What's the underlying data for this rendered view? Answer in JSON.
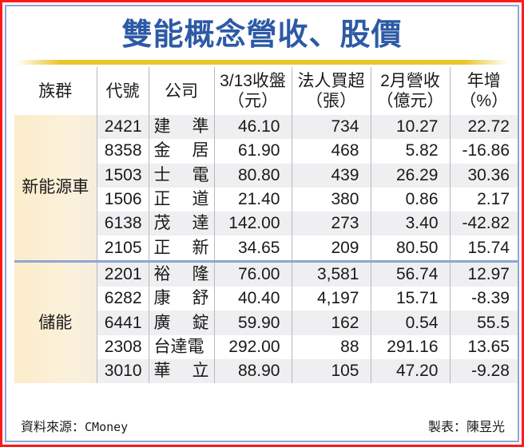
{
  "title": "雙能概念營收、股價",
  "table": {
    "headers": [
      {
        "line1": "族群",
        "line2": ""
      },
      {
        "line1": "代號",
        "line2": ""
      },
      {
        "line1": "公司",
        "line2": ""
      },
      {
        "line1": "3/13收盤",
        "line2": "（元）"
      },
      {
        "line1": "法人買超",
        "line2": "（張）"
      },
      {
        "line1": "2月營收",
        "line2": "（億元）"
      },
      {
        "line1": "年增",
        "line2": "（%）"
      }
    ],
    "groups": [
      {
        "name": "新能源車",
        "rows": [
          {
            "code": "2421",
            "company": [
              "建",
              "準"
            ],
            "close": "46.10",
            "net_buy": "734",
            "revenue": "10.27",
            "yoy": "22.72"
          },
          {
            "code": "8358",
            "company": [
              "金",
              "居"
            ],
            "close": "61.90",
            "net_buy": "468",
            "revenue": "5.82",
            "yoy": "-16.86"
          },
          {
            "code": "1503",
            "company": [
              "士",
              "電"
            ],
            "close": "80.80",
            "net_buy": "439",
            "revenue": "26.29",
            "yoy": "30.36"
          },
          {
            "code": "1506",
            "company": [
              "正",
              "道"
            ],
            "close": "21.40",
            "net_buy": "380",
            "revenue": "0.86",
            "yoy": "2.17"
          },
          {
            "code": "6138",
            "company": [
              "茂",
              "達"
            ],
            "close": "142.00",
            "net_buy": "273",
            "revenue": "3.40",
            "yoy": "-42.82"
          },
          {
            "code": "2105",
            "company": [
              "正",
              "新"
            ],
            "close": "34.65",
            "net_buy": "209",
            "revenue": "80.50",
            "yoy": "15.74"
          }
        ]
      },
      {
        "name": "儲能",
        "rows": [
          {
            "code": "2201",
            "company": [
              "裕",
              "隆"
            ],
            "close": "76.00",
            "net_buy": "3,581",
            "revenue": "56.74",
            "yoy": "12.97"
          },
          {
            "code": "6282",
            "company": [
              "康",
              "舒"
            ],
            "close": "40.40",
            "net_buy": "4,197",
            "revenue": "15.71",
            "yoy": "-8.39"
          },
          {
            "code": "6441",
            "company": [
              "廣",
              "錠"
            ],
            "close": "59.90",
            "net_buy": "162",
            "revenue": "0.54",
            "yoy": "55.5"
          },
          {
            "code": "2308",
            "company": [
              "台達電",
              ""
            ],
            "close": "292.00",
            "net_buy": "88",
            "revenue": "291.16",
            "yoy": "13.65"
          },
          {
            "code": "3010",
            "company": [
              "華",
              "立"
            ],
            "close": "88.90",
            "net_buy": "105",
            "revenue": "47.20",
            "yoy": "-9.28"
          }
        ]
      }
    ]
  },
  "footer": {
    "source_label": "資料來源：",
    "source_value": "CMoney",
    "author": "製表：陳昱光"
  },
  "colors": {
    "title": "#2d5aa6",
    "outer_border": "#ff1a1a",
    "inner_border": "#8fa6d4",
    "gold_bar": "#eac52a",
    "group_bg": "#fbecc9",
    "row_alt_bg": "#efeff2"
  }
}
